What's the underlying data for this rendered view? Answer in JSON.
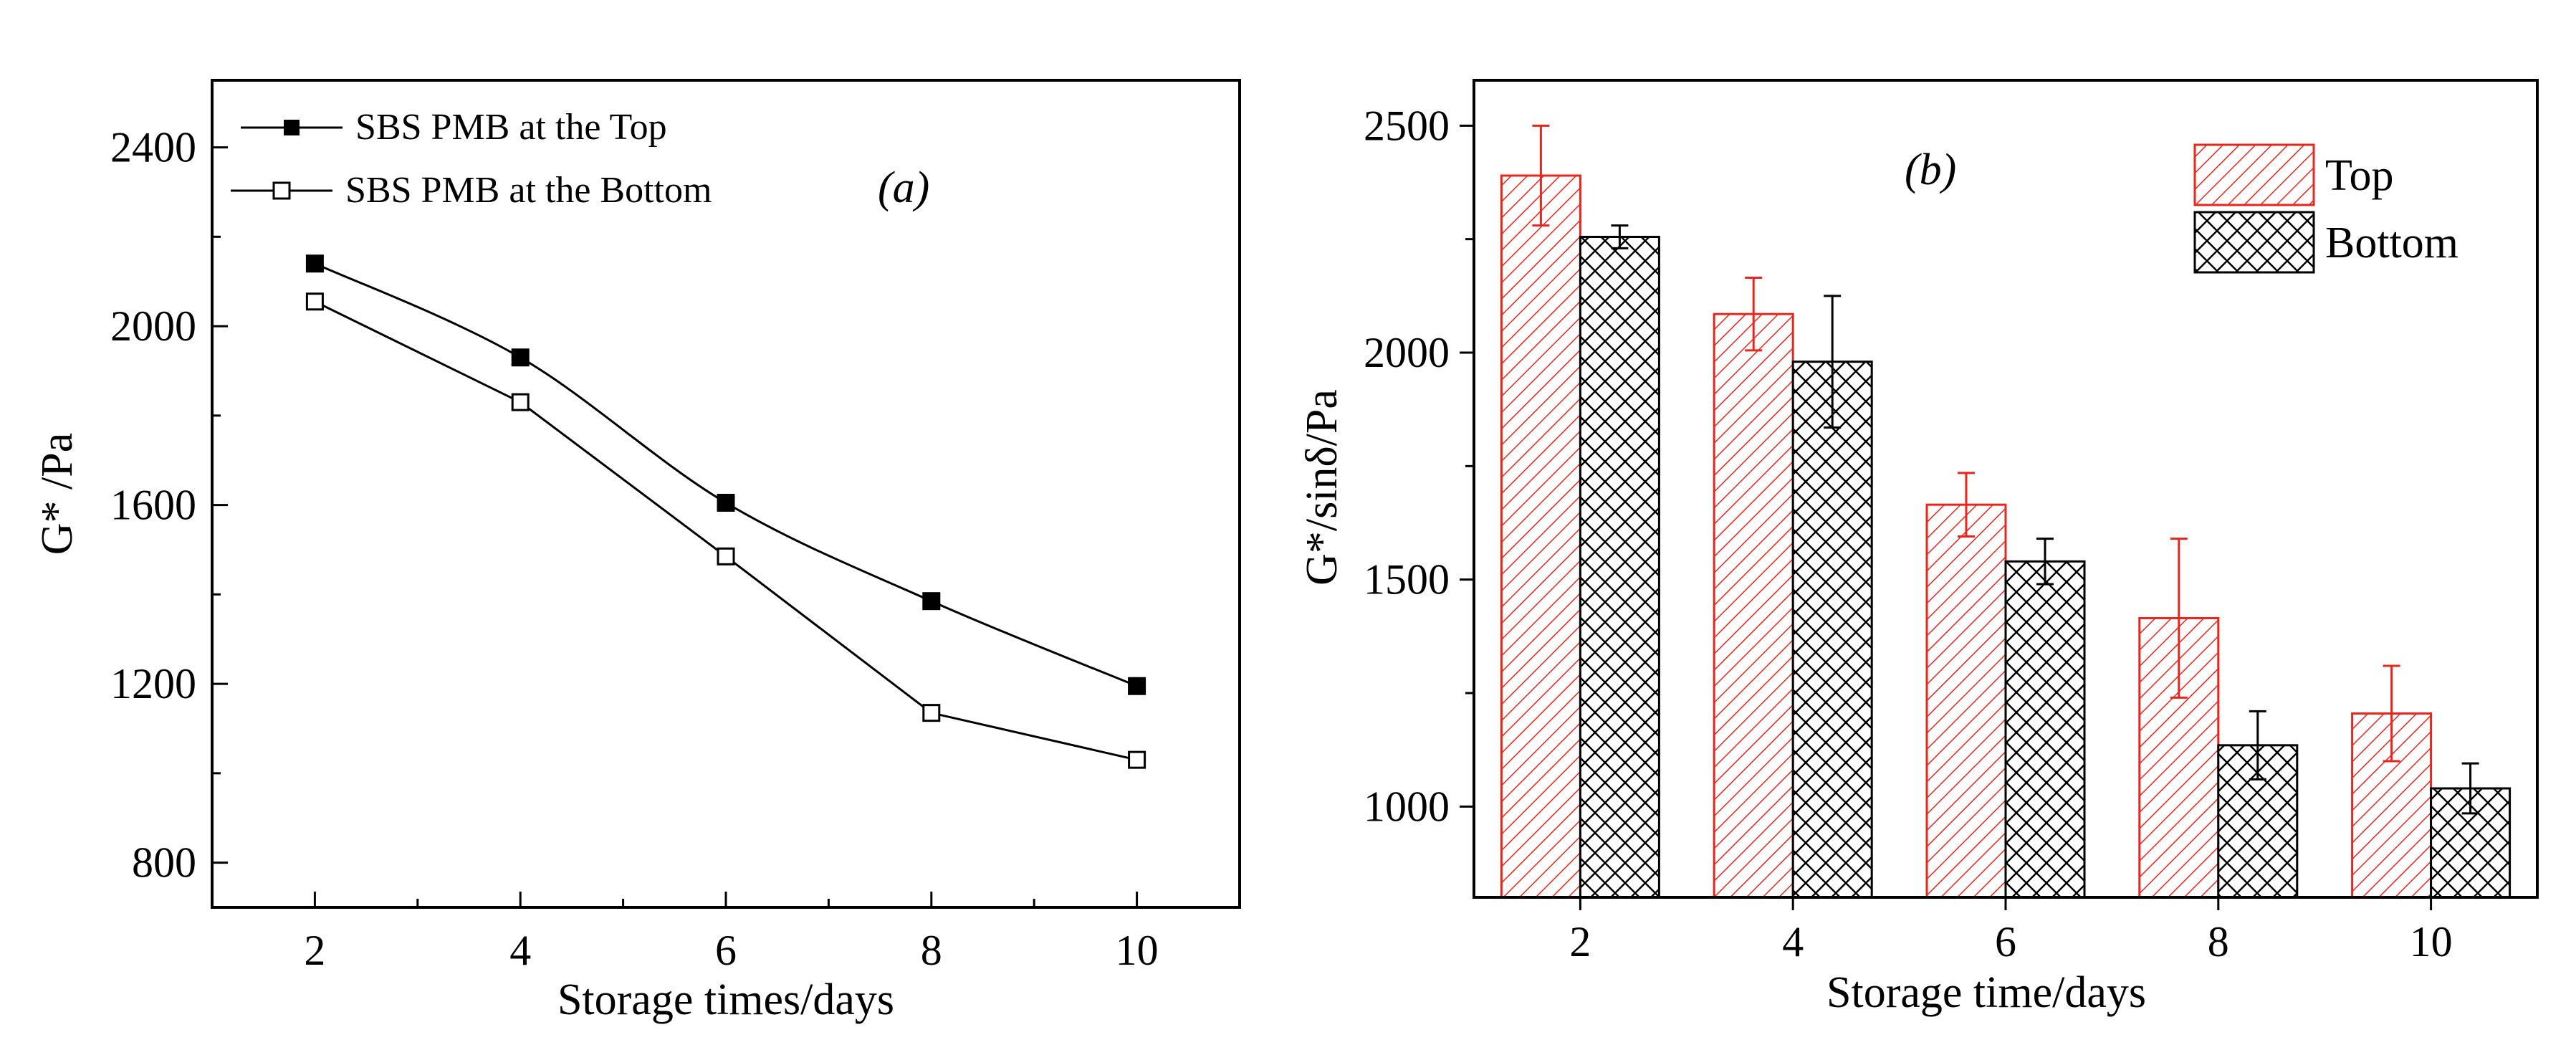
{
  "chart_data": [
    {
      "type": "line",
      "panel_label": "(a)",
      "title": "",
      "xlabel": "Storage times/days",
      "ylabel": "G* /Pa",
      "xlim": [
        1,
        11
      ],
      "ylim": [
        700,
        2550
      ],
      "x_ticks": [
        "2",
        "4",
        "6",
        "8",
        "10"
      ],
      "y_ticks": [
        "800",
        "1200",
        "1600",
        "2000",
        "2400"
      ],
      "x": [
        2,
        4,
        6,
        8,
        10
      ],
      "series": [
        {
          "name": "SBS PMB at the Top",
          "marker": "filled-square",
          "values": [
            2140,
            1930,
            1605,
            1385,
            1195
          ]
        },
        {
          "name": "SBS PMB at the Bottom",
          "marker": "open-square",
          "values": [
            2055,
            1830,
            1485,
            1135,
            1030
          ]
        }
      ],
      "legend_position": "top-left"
    },
    {
      "type": "bar",
      "panel_label": "(b)",
      "title": "",
      "xlabel": "Storage time/days",
      "ylabel": "G*/sinδ/Pa",
      "ylim": [
        800,
        2600
      ],
      "categories": [
        "2",
        "4",
        "6",
        "8",
        "10"
      ],
      "y_ticks": [
        "1000",
        "1500",
        "2000",
        "2500"
      ],
      "series": [
        {
          "name": "Top",
          "color": "#e8261e",
          "pattern": "diagonal-hatch",
          "values": [
            2390,
            2085,
            1665,
            1415,
            1205
          ],
          "errors": [
            110,
            80,
            70,
            175,
            105
          ]
        },
        {
          "name": "Bottom",
          "color": "#000000",
          "pattern": "crosshatch",
          "values": [
            2255,
            1980,
            1540,
            1135,
            1040
          ],
          "errors": [
            25,
            145,
            50,
            75,
            55
          ]
        }
      ],
      "legend_position": "top-right"
    }
  ]
}
